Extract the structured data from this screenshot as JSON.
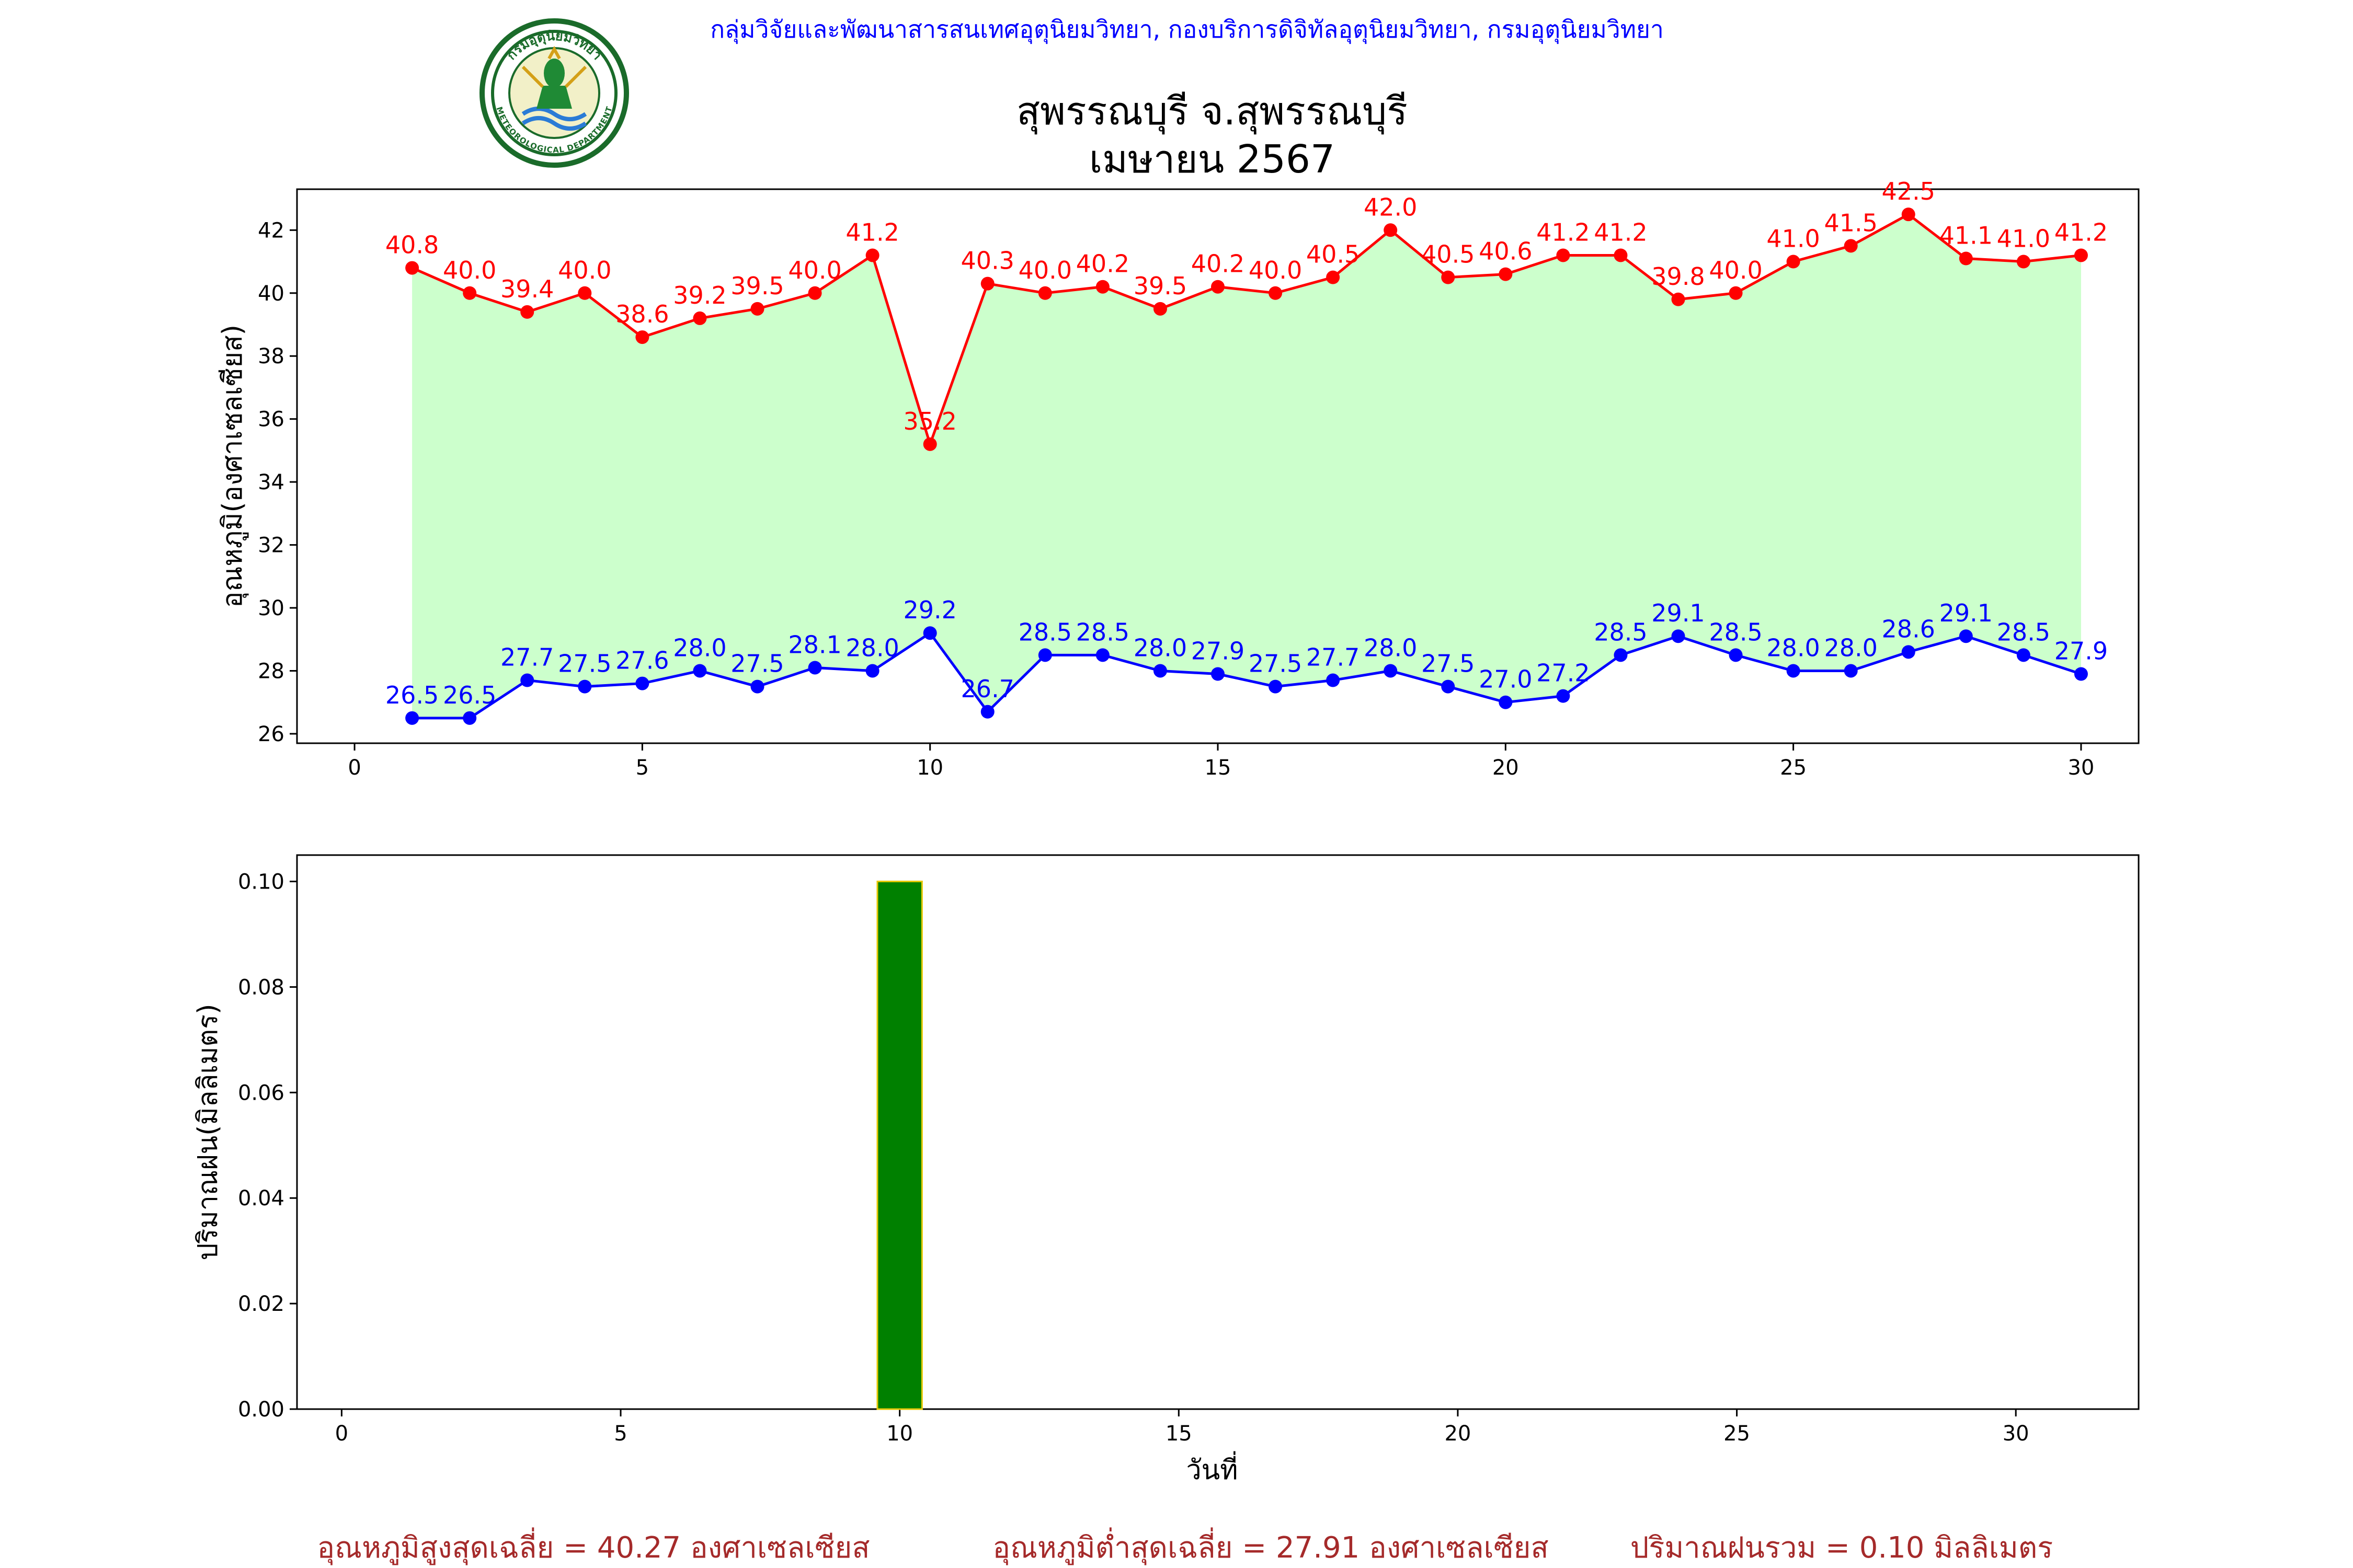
{
  "header": {
    "agency": "กลุ่มวิจัยและพัฒนาสารสนเทศอุตุนิยมวิทยา, กองบริการดิจิทัลอุตุนิยมวิทยา, กรมอุตุนิยมวิทยา",
    "station": "สุพรรณบุรี จ.สุพรรณบุรี",
    "period": "เมษายน 2567",
    "logo_text_top": "กรมอุตุนิยมวิทยา",
    "logo_text_bottom": "METEOROLOGICAL DEPARTMENT"
  },
  "colors": {
    "max_temp": "#ff0000",
    "min_temp": "#0000ff",
    "temp_fill": "#ccffcc",
    "rain_bar": "#008000",
    "rain_edge": "#e6c800",
    "header_text": "#0000ff",
    "summary_text": "#a52a2a"
  },
  "chart_data": [
    {
      "type": "line",
      "ylabel": "อุณหภูมิ(องศาเซลเซียส)",
      "xlim": [
        -1,
        31
      ],
      "ylim": [
        25.7,
        43.3
      ],
      "xticks": [
        0,
        5,
        10,
        15,
        20,
        25,
        30
      ],
      "yticks": [
        26,
        28,
        30,
        32,
        34,
        36,
        38,
        40,
        42
      ],
      "x": [
        1,
        2,
        3,
        4,
        5,
        6,
        7,
        8,
        9,
        10,
        11,
        12,
        13,
        14,
        15,
        16,
        17,
        18,
        19,
        20,
        21,
        22,
        23,
        24,
        25,
        26,
        27,
        28,
        29,
        30
      ],
      "series": [
        {
          "key": "max",
          "values": [
            40.8,
            40.0,
            39.4,
            40.0,
            38.6,
            39.2,
            39.5,
            40.0,
            41.2,
            35.2,
            40.3,
            40.0,
            40.2,
            39.5,
            40.2,
            40.0,
            40.5,
            42.0,
            40.5,
            40.6,
            41.2,
            41.2,
            39.8,
            40.0,
            41.0,
            41.5,
            42.5,
            41.1,
            41.0,
            41.2
          ]
        },
        {
          "key": "min",
          "values": [
            26.5,
            26.5,
            27.7,
            27.5,
            27.6,
            28.0,
            27.5,
            28.1,
            28.0,
            29.2,
            26.7,
            28.5,
            28.5,
            28.0,
            27.9,
            27.5,
            27.7,
            28.0,
            27.5,
            27.0,
            27.2,
            28.5,
            29.1,
            28.5,
            28.0,
            28.0,
            28.6,
            29.1,
            28.5,
            27.9
          ]
        }
      ]
    },
    {
      "type": "bar",
      "ylabel": "ปริมาณฝน(มิลลิเมตร)",
      "xlabel": "วันที่",
      "xlim": [
        -0.8,
        32.2
      ],
      "ylim": [
        0,
        0.105
      ],
      "xticks": [
        0,
        5,
        10,
        15,
        20,
        25,
        30
      ],
      "yticks": [
        0.0,
        0.02,
        0.04,
        0.06,
        0.08,
        0.1
      ],
      "x": [
        1,
        2,
        3,
        4,
        5,
        6,
        7,
        8,
        9,
        10,
        11,
        12,
        13,
        14,
        15,
        16,
        17,
        18,
        19,
        20,
        21,
        22,
        23,
        24,
        25,
        26,
        27,
        28,
        29,
        30
      ],
      "values": [
        0,
        0,
        0,
        0,
        0,
        0,
        0,
        0,
        0,
        0.1,
        0,
        0,
        0,
        0,
        0,
        0,
        0,
        0,
        0,
        0,
        0,
        0,
        0,
        0,
        0,
        0,
        0,
        0,
        0,
        0
      ]
    }
  ],
  "summary": {
    "avg_max": "อุณหภูมิสูงสุดเฉลี่ย = 40.27 องศาเซลเซียส",
    "avg_min": "อุณหภูมิต่ำสุดเฉลี่ย = 27.91 องศาเซลเซียส",
    "total_rain": "ปริมาณฝนรวม = 0.10 มิลลิเมตร"
  }
}
